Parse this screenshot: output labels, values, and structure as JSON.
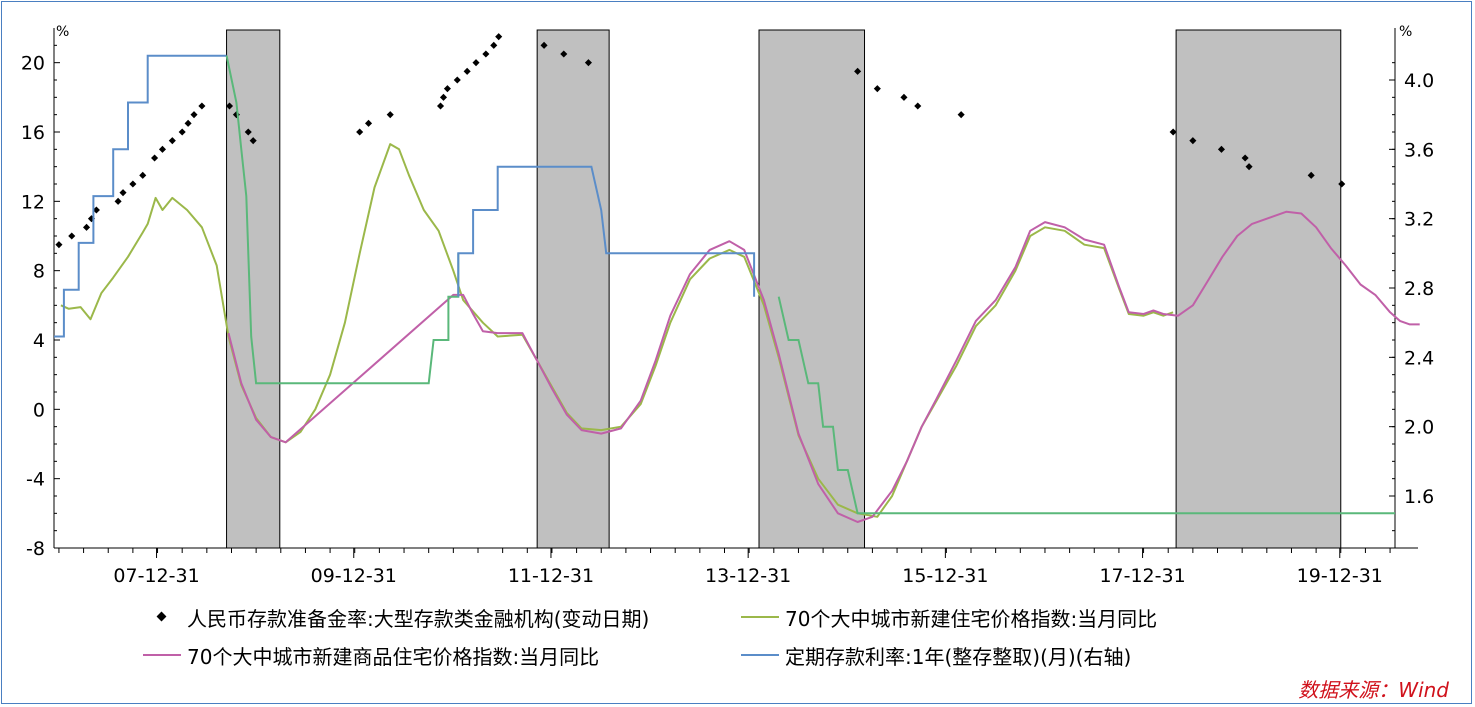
{
  "chart_data": {
    "type": "line",
    "y_left": {
      "unit": "%",
      "ylim": [
        -8,
        22
      ],
      "ticks": [
        -8,
        -4,
        0,
        4,
        8,
        12,
        16,
        20
      ]
    },
    "y_right": {
      "unit": "%",
      "ylim": [
        1.3,
        4.3
      ],
      "ticks": [
        "1.6",
        "2.0",
        "2.4",
        "2.8",
        "3.2",
        "3.6",
        "4.0"
      ]
    },
    "x_ticks": [
      {
        "label": "07-12-31",
        "x": 2007.99
      },
      {
        "label": "09-12-31",
        "x": 2009.99
      },
      {
        "label": "11-12-31",
        "x": 2011.99
      },
      {
        "label": "13-12-31",
        "x": 2013.99
      },
      {
        "label": "15-12-31",
        "x": 2015.99
      },
      {
        "label": "17-12-31",
        "x": 2017.99
      },
      {
        "label": "19-12-31",
        "x": 2019.99
      }
    ],
    "xlim": [
      2006.95,
      2020.55
    ],
    "shaded_periods": [
      [
        2008.7,
        2009.24
      ],
      [
        2011.85,
        2012.58
      ],
      [
        2014.1,
        2015.17
      ],
      [
        2018.33,
        2020.0
      ]
    ],
    "series": [
      {
        "name": "人民币存款准备金率:大型存款类金融机构(变动日期)",
        "axis": "left",
        "style": "points",
        "color": "#000000",
        "points": [
          [
            2007.0,
            9.5
          ],
          [
            2007.13,
            10
          ],
          [
            2007.28,
            10.5
          ],
          [
            2007.33,
            11
          ],
          [
            2007.38,
            11.5
          ],
          [
            2007.6,
            12
          ],
          [
            2007.65,
            12.5
          ],
          [
            2007.75,
            13
          ],
          [
            2007.85,
            13.5
          ],
          [
            2007.97,
            14.5
          ],
          [
            2008.05,
            15
          ],
          [
            2008.15,
            15.5
          ],
          [
            2008.25,
            16
          ],
          [
            2008.31,
            16.5
          ],
          [
            2008.37,
            17
          ],
          [
            2008.45,
            17.5
          ],
          [
            2008.73,
            17.5
          ],
          [
            2008.8,
            17
          ],
          [
            2008.92,
            16
          ],
          [
            2008.97,
            15.5
          ],
          [
            2010.05,
            16
          ],
          [
            2010.14,
            16.5
          ],
          [
            2010.36,
            17
          ],
          [
            2010.87,
            17.5
          ],
          [
            2010.9,
            18
          ],
          [
            2010.94,
            18.5
          ],
          [
            2011.04,
            19
          ],
          [
            2011.14,
            19.5
          ],
          [
            2011.23,
            20
          ],
          [
            2011.33,
            20.5
          ],
          [
            2011.41,
            21
          ],
          [
            2011.46,
            21.5
          ],
          [
            2011.92,
            21
          ],
          [
            2012.12,
            20.5
          ],
          [
            2012.37,
            20
          ],
          [
            2015.1,
            19.5
          ],
          [
            2015.3,
            18.5
          ],
          [
            2015.57,
            18
          ],
          [
            2015.71,
            17.5
          ],
          [
            2016.15,
            17
          ],
          [
            2018.3,
            16
          ],
          [
            2018.5,
            15.5
          ],
          [
            2018.79,
            15
          ],
          [
            2019.03,
            14.5
          ],
          [
            2019.07,
            14
          ],
          [
            2019.7,
            13.5
          ],
          [
            2020.01,
            13
          ]
        ]
      },
      {
        "name": "70个大中城市新建住宅价格指数:当月同比",
        "axis": "left",
        "style": "line",
        "color": "#9bb84a",
        "points": [
          [
            2007.02,
            6
          ],
          [
            2007.1,
            5.8
          ],
          [
            2007.22,
            5.9
          ],
          [
            2007.32,
            5.2
          ],
          [
            2007.43,
            6.7
          ],
          [
            2007.55,
            7.6
          ],
          [
            2007.7,
            8.8
          ],
          [
            2007.85,
            10.2
          ],
          [
            2007.9,
            10.7
          ],
          [
            2007.98,
            12.2
          ],
          [
            2008.05,
            11.5
          ],
          [
            2008.15,
            12.2
          ],
          [
            2008.3,
            11.5
          ],
          [
            2008.45,
            10.5
          ],
          [
            2008.6,
            8.3
          ],
          [
            2008.72,
            4.2
          ],
          [
            2008.85,
            1.4
          ],
          [
            2009.0,
            -0.5
          ],
          [
            2009.15,
            -1.6
          ],
          [
            2009.3,
            -1.9
          ],
          [
            2009.45,
            -1.3
          ],
          [
            2009.6,
            0
          ],
          [
            2009.75,
            2
          ],
          [
            2009.9,
            5
          ],
          [
            2010.05,
            9
          ],
          [
            2010.2,
            12.8
          ],
          [
            2010.36,
            15.3
          ],
          [
            2010.45,
            15
          ],
          [
            2010.55,
            13.5
          ],
          [
            2010.7,
            11.5
          ],
          [
            2010.85,
            10.3
          ],
          [
            2011.0,
            8
          ],
          [
            2011.1,
            6.3
          ],
          [
            2011.3,
            5
          ],
          [
            2011.45,
            4.2
          ],
          [
            2011.7,
            4.3
          ],
          [
            2011.85,
            2.8
          ],
          [
            2012.0,
            1.3
          ],
          [
            2012.15,
            -0.2
          ],
          [
            2012.3,
            -1.1
          ],
          [
            2012.5,
            -1.2
          ],
          [
            2012.7,
            -1
          ],
          [
            2012.9,
            0.3
          ],
          [
            2013.05,
            2.5
          ],
          [
            2013.2,
            5
          ],
          [
            2013.4,
            7.5
          ],
          [
            2013.6,
            8.7
          ],
          [
            2013.8,
            9.2
          ],
          [
            2013.95,
            8.8
          ],
          [
            2014.15,
            6
          ],
          [
            2014.3,
            3
          ],
          [
            2014.5,
            -1.5
          ],
          [
            2014.7,
            -4
          ],
          [
            2014.9,
            -5.5
          ],
          [
            2015.1,
            -6
          ],
          [
            2015.3,
            -6.2
          ],
          [
            2015.45,
            -5
          ],
          [
            2015.6,
            -3
          ],
          [
            2015.75,
            -1
          ],
          [
            2015.9,
            0.5
          ],
          [
            2016.1,
            2.5
          ],
          [
            2016.3,
            4.8
          ],
          [
            2016.5,
            6
          ],
          [
            2016.7,
            8
          ],
          [
            2016.85,
            10
          ],
          [
            2017.0,
            10.5
          ],
          [
            2017.2,
            10.3
          ],
          [
            2017.4,
            9.5
          ],
          [
            2017.6,
            9.3
          ],
          [
            2017.75,
            7
          ],
          [
            2017.85,
            5.5
          ],
          [
            2018.0,
            5.4
          ],
          [
            2018.1,
            5.6
          ],
          [
            2018.2,
            5.4
          ],
          [
            2018.3,
            5.6
          ]
        ]
      },
      {
        "name": "70个大中城市新建商品住宅价格指数:当月同比",
        "axis": "left",
        "style": "line",
        "color": "#c060a8",
        "points": [
          [
            2008.72,
            4.4
          ],
          [
            2008.85,
            1.5
          ],
          [
            2009.0,
            -0.6
          ],
          [
            2009.15,
            -1.6
          ],
          [
            2009.3,
            -1.9
          ],
          [
            2011.0,
            6.6
          ],
          [
            2011.1,
            6.6
          ],
          [
            2011.2,
            5.5
          ],
          [
            2011.3,
            4.5
          ],
          [
            2011.45,
            4.4
          ],
          [
            2011.7,
            4.4
          ],
          [
            2011.85,
            2.8
          ],
          [
            2012.0,
            1.2
          ],
          [
            2012.15,
            -0.3
          ],
          [
            2012.3,
            -1.2
          ],
          [
            2012.5,
            -1.4
          ],
          [
            2012.7,
            -1.1
          ],
          [
            2012.9,
            0.5
          ],
          [
            2013.05,
            2.8
          ],
          [
            2013.2,
            5.4
          ],
          [
            2013.4,
            7.8
          ],
          [
            2013.6,
            9.2
          ],
          [
            2013.8,
            9.7
          ],
          [
            2013.95,
            9.2
          ],
          [
            2014.15,
            6.3
          ],
          [
            2014.3,
            3.2
          ],
          [
            2014.5,
            -1.4
          ],
          [
            2014.7,
            -4.3
          ],
          [
            2014.9,
            -6
          ],
          [
            2015.1,
            -6.5
          ],
          [
            2015.25,
            -6.2
          ],
          [
            2015.45,
            -4.7
          ],
          [
            2015.6,
            -3
          ],
          [
            2015.75,
            -1
          ],
          [
            2015.9,
            0.6
          ],
          [
            2016.1,
            2.8
          ],
          [
            2016.3,
            5.1
          ],
          [
            2016.5,
            6.3
          ],
          [
            2016.7,
            8.2
          ],
          [
            2016.85,
            10.3
          ],
          [
            2017.0,
            10.8
          ],
          [
            2017.2,
            10.5
          ],
          [
            2017.4,
            9.8
          ],
          [
            2017.6,
            9.5
          ],
          [
            2017.75,
            7.1
          ],
          [
            2017.85,
            5.6
          ],
          [
            2018.0,
            5.5
          ],
          [
            2018.1,
            5.7
          ],
          [
            2018.2,
            5.5
          ],
          [
            2018.35,
            5.4
          ],
          [
            2018.5,
            6
          ],
          [
            2018.65,
            7.4
          ],
          [
            2018.8,
            8.8
          ],
          [
            2018.95,
            10
          ],
          [
            2019.1,
            10.7
          ],
          [
            2019.3,
            11.1
          ],
          [
            2019.45,
            11.4
          ],
          [
            2019.6,
            11.3
          ],
          [
            2019.75,
            10.5
          ],
          [
            2019.9,
            9.3
          ],
          [
            2020.05,
            8.3
          ],
          [
            2020.2,
            7.2
          ],
          [
            2020.35,
            6.6
          ],
          [
            2020.5,
            5.6
          ],
          [
            2020.6,
            5.1
          ],
          [
            2020.7,
            4.9
          ],
          [
            2020.8,
            4.9
          ]
        ]
      },
      {
        "name": "定期存款利率:1年(整存整取)(月)(右轴)",
        "axis": "right",
        "style": "step",
        "color": "#5b8dc9",
        "colors_by_segment": [
          {
            "from": 2006.95,
            "to": 2008.7,
            "color": "#5b8dc9"
          },
          {
            "from": 2008.7,
            "to": 2011.05,
            "color": "#5ab87a"
          },
          {
            "from": 2011.05,
            "to": 2014.1,
            "color": "#5b8dc9"
          },
          {
            "from": 2014.1,
            "to": 2020.55,
            "color": "#5ab87a"
          }
        ],
        "points": [
          [
            2006.95,
            2.52
          ],
          [
            2007.05,
            2.52
          ],
          [
            2007.05,
            2.79
          ],
          [
            2007.2,
            2.79
          ],
          [
            2007.2,
            3.06
          ],
          [
            2007.35,
            3.06
          ],
          [
            2007.35,
            3.33
          ],
          [
            2007.55,
            3.33
          ],
          [
            2007.55,
            3.6
          ],
          [
            2007.7,
            3.6
          ],
          [
            2007.7,
            3.87
          ],
          [
            2007.9,
            3.87
          ],
          [
            2007.9,
            4.14
          ],
          [
            2008.7,
            4.14
          ],
          [
            2008.8,
            3.87
          ],
          [
            2008.85,
            3.6
          ],
          [
            2008.9,
            3.33
          ],
          [
            2008.95,
            2.52
          ],
          [
            2009.0,
            2.25
          ],
          [
            2010.75,
            2.25
          ],
          [
            2010.8,
            2.5
          ],
          [
            2010.95,
            2.5
          ],
          [
            2010.95,
            2.75
          ],
          [
            2011.05,
            2.75
          ],
          [
            2011.05,
            3.0
          ],
          [
            2011.2,
            3.0
          ],
          [
            2011.2,
            3.25
          ],
          [
            2011.45,
            3.25
          ],
          [
            2011.45,
            3.5
          ],
          [
            2012.4,
            3.5
          ],
          [
            2012.5,
            3.25
          ],
          [
            2012.55,
            3.0
          ],
          [
            2014.05,
            3.0
          ],
          [
            2014.05,
            2.75
          ],
          [
            2014.3,
            2.75
          ],
          [
            2014.4,
            2.5
          ],
          [
            2014.5,
            2.5
          ],
          [
            2014.6,
            2.25
          ],
          [
            2014.7,
            2.25
          ],
          [
            2014.75,
            2.0
          ],
          [
            2014.85,
            2.0
          ],
          [
            2014.9,
            1.75
          ],
          [
            2015.0,
            1.75
          ],
          [
            2015.1,
            1.5
          ],
          [
            2020.55,
            1.5
          ]
        ]
      }
    ],
    "legend": {
      "item1": "人民币存款准备金率:大型存款类金融机构(变动日期)",
      "item2": "70个大中城市新建住宅价格指数:当月同比",
      "item3": "70个大中城市新建商品住宅价格指数:当月同比",
      "item4": "定期存款利率:1年(整存整取)(月)(右轴)"
    }
  },
  "source": "数据来源：Wind",
  "colors": {
    "shade_fill": "#c0c0c0",
    "frame": "#4a7fc1",
    "source_text": "#d0111b"
  }
}
